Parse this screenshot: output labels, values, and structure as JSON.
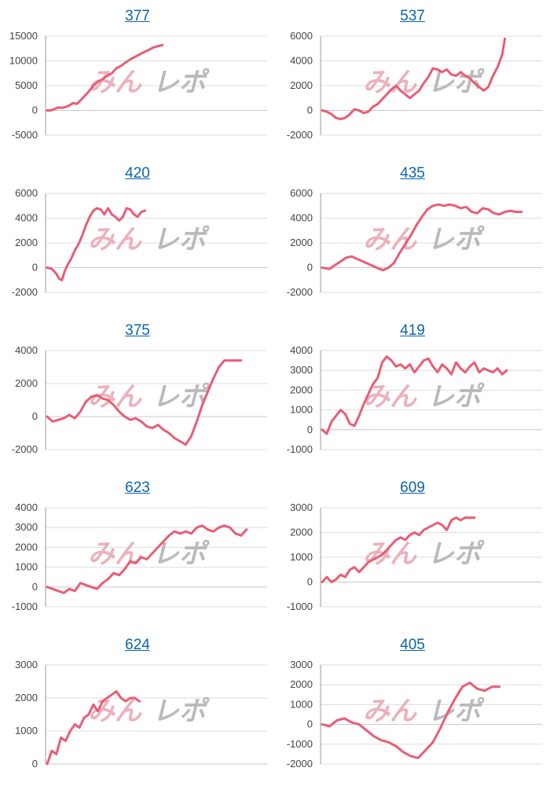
{
  "colors": {
    "line": "#e85d75",
    "grid": "#dddddd",
    "axis": "#999999",
    "title": "#0b64ad",
    "watermark_a": "#e9a9b3",
    "watermark_b": "#b3b3b3"
  },
  "watermark": {
    "part_a": "みん",
    "part_b": "レポ"
  },
  "chart_data": [
    {
      "type": "line",
      "title": "377",
      "ylim": [
        -5000,
        15000
      ],
      "yticks": [
        "15000",
        "10000",
        "5000",
        "0",
        "-5000"
      ],
      "grid": true,
      "x": [
        0,
        4,
        8,
        12,
        16,
        20,
        24,
        28,
        32,
        36,
        40,
        45,
        50,
        55,
        60,
        65,
        70,
        75,
        80,
        85,
        90,
        95,
        100,
        105,
        110,
        115,
        120,
        125
      ],
      "y": [
        0,
        0,
        300,
        600,
        500,
        700,
        1000,
        1500,
        1300,
        2000,
        2800,
        3800,
        5000,
        5800,
        6300,
        7000,
        7500,
        8500,
        9000,
        9700,
        10300,
        10800,
        11300,
        11800,
        12200,
        12700,
        13000,
        13200
      ]
    },
    {
      "type": "line",
      "title": "537",
      "ylim": [
        -2000,
        6000
      ],
      "yticks": [
        "6000",
        "4000",
        "2000",
        "0",
        "-2000"
      ],
      "grid": true,
      "x": [
        0,
        5,
        10,
        15,
        20,
        25,
        30,
        35,
        40,
        45,
        50,
        55,
        60,
        65,
        70,
        75,
        80,
        85,
        90,
        95,
        100,
        105,
        110,
        115,
        120,
        125,
        130,
        135,
        140,
        145,
        150,
        155,
        160,
        165,
        170,
        175,
        180,
        185,
        190,
        195,
        198
      ],
      "y": [
        0,
        -100,
        -300,
        -600,
        -700,
        -600,
        -300,
        100,
        0,
        -200,
        -100,
        300,
        500,
        900,
        1300,
        1700,
        2000,
        1600,
        1300,
        1000,
        1300,
        1600,
        2200,
        2700,
        3400,
        3300,
        3100,
        3300,
        2900,
        2800,
        3100,
        2800,
        2600,
        2200,
        1900,
        1600,
        1900,
        2800,
        3500,
        4500,
        5800
      ]
    },
    {
      "type": "line",
      "title": "420",
      "ylim": [
        -2000,
        6000
      ],
      "yticks": [
        "6000",
        "4000",
        "2000",
        "0",
        "-2000"
      ],
      "grid": true,
      "x": [
        0,
        5,
        10,
        13,
        16,
        19,
        22,
        26,
        30,
        34,
        38,
        42,
        46,
        50,
        54,
        58,
        62,
        66,
        70,
        74,
        78,
        82,
        86,
        90,
        94,
        98,
        102,
        106
      ],
      "y": [
        0,
        -100,
        -500,
        -900,
        -1000,
        -300,
        200,
        700,
        1400,
        1900,
        2600,
        3400,
        4100,
        4600,
        4800,
        4700,
        4300,
        4800,
        4300,
        4100,
        3800,
        4100,
        4800,
        4700,
        4300,
        4100,
        4500,
        4600
      ]
    },
    {
      "type": "line",
      "title": "435",
      "ylim": [
        -2000,
        6000
      ],
      "yticks": [
        "6000",
        "4000",
        "2000",
        "0",
        "-2000"
      ],
      "grid": true,
      "x": [
        0,
        8,
        14,
        20,
        26,
        32,
        38,
        44,
        50,
        56,
        62,
        66,
        72,
        78,
        84,
        90,
        96,
        102,
        108,
        114,
        120,
        126,
        132,
        138,
        144,
        150,
        156,
        162,
        168,
        174,
        180,
        186,
        192,
        198,
        204,
        210,
        216
      ],
      "y": [
        0,
        -100,
        200,
        500,
        800,
        900,
        700,
        500,
        300,
        100,
        -100,
        -200,
        0,
        400,
        1200,
        1900,
        2600,
        3400,
        4100,
        4700,
        5000,
        5100,
        5000,
        5100,
        5000,
        4800,
        4900,
        4500,
        4400,
        4800,
        4700,
        4400,
        4300,
        4500,
        4600,
        4500,
        4500
      ]
    },
    {
      "type": "line",
      "title": "375",
      "ylim": [
        -2000,
        4000
      ],
      "yticks": [
        "4000",
        "2000",
        "0",
        "-2000"
      ],
      "grid": true,
      "x": [
        0,
        6,
        12,
        18,
        24,
        30,
        36,
        42,
        48,
        54,
        60,
        66,
        72,
        78,
        84,
        90,
        96,
        102,
        108,
        114,
        120,
        126,
        132,
        138,
        144,
        150,
        156,
        162,
        168,
        174,
        180,
        186,
        192,
        198,
        204,
        210
      ],
      "y": [
        0,
        -300,
        -200,
        -100,
        100,
        -100,
        300,
        900,
        1200,
        1300,
        1100,
        1000,
        700,
        300,
        0,
        -200,
        -100,
        -300,
        -600,
        -700,
        -500,
        -800,
        -1000,
        -1300,
        -1500,
        -1700,
        -1200,
        -300,
        700,
        1500,
        2300,
        3000,
        3400,
        3400,
        3400,
        3400
      ]
    },
    {
      "type": "line",
      "title": "419",
      "ylim": [
        -1000,
        4000
      ],
      "yticks": [
        "4000",
        "3000",
        "2000",
        "1000",
        "0",
        "-1000"
      ],
      "grid": true,
      "x": [
        0,
        5,
        10,
        15,
        20,
        25,
        30,
        35,
        40,
        45,
        50,
        55,
        60,
        65,
        70,
        75,
        80,
        85,
        90,
        95,
        100,
        105,
        110,
        115,
        120,
        125,
        130,
        135,
        140,
        145,
        150,
        155,
        160,
        165,
        170,
        175,
        180,
        185,
        190,
        195,
        200
      ],
      "y": [
        0,
        -200,
        400,
        700,
        1000,
        800,
        300,
        200,
        700,
        1300,
        1800,
        2300,
        2600,
        3400,
        3700,
        3500,
        3200,
        3300,
        3100,
        3300,
        2900,
        3200,
        3500,
        3600,
        3200,
        2900,
        3300,
        3100,
        2800,
        3400,
        3100,
        2900,
        3200,
        3400,
        2900,
        3100,
        3000,
        2900,
        3100,
        2800,
        3000
      ]
    },
    {
      "type": "line",
      "title": "623",
      "ylim": [
        -1000,
        4000
      ],
      "yticks": [
        "4000",
        "3000",
        "2000",
        "1000",
        "0",
        "-1000"
      ],
      "grid": true,
      "x": [
        0,
        6,
        12,
        18,
        24,
        30,
        36,
        42,
        48,
        54,
        60,
        66,
        72,
        78,
        84,
        90,
        96,
        102,
        108,
        114,
        120,
        126,
        132,
        138,
        144,
        150,
        156,
        162,
        168,
        174,
        180,
        186,
        192,
        198,
        204,
        210,
        216
      ],
      "y": [
        0,
        -100,
        -200,
        -300,
        -100,
        -200,
        200,
        100,
        0,
        -100,
        200,
        400,
        700,
        600,
        900,
        1300,
        1200,
        1500,
        1400,
        1700,
        2000,
        2300,
        2600,
        2800,
        2700,
        2800,
        2700,
        3000,
        3100,
        2900,
        2800,
        3000,
        3100,
        3000,
        2700,
        2600,
        2900
      ]
    },
    {
      "type": "line",
      "title": "609",
      "ylim": [
        -1000,
        3000
      ],
      "yticks": [
        "3000",
        "2000",
        "1000",
        "0",
        "-1000"
      ],
      "grid": true,
      "x": [
        0,
        5,
        10,
        15,
        20,
        25,
        30,
        35,
        40,
        45,
        50,
        55,
        60,
        65,
        70,
        75,
        80,
        85,
        90,
        95,
        100,
        105,
        110,
        115,
        120,
        125,
        130,
        135,
        140,
        145,
        150,
        155,
        160,
        165
      ],
      "y": [
        0,
        200,
        0,
        100,
        300,
        200,
        500,
        600,
        400,
        600,
        800,
        900,
        1000,
        1100,
        1300,
        1500,
        1700,
        1800,
        1700,
        1900,
        2000,
        1900,
        2100,
        2200,
        2300,
        2400,
        2300,
        2100,
        2500,
        2600,
        2500,
        2600,
        2600,
        2600
      ]
    },
    {
      "type": "line",
      "title": "624",
      "ylim": [
        0,
        3000
      ],
      "yticks": [
        "3000",
        "2000",
        "1000",
        "0"
      ],
      "grid": true,
      "x": [
        0,
        5,
        10,
        15,
        20,
        25,
        30,
        35,
        40,
        45,
        50,
        55,
        60,
        65,
        70,
        75,
        80,
        85,
        90,
        95,
        100
      ],
      "y": [
        0,
        400,
        300,
        800,
        700,
        1000,
        1200,
        1100,
        1400,
        1500,
        1800,
        1600,
        1900,
        2000,
        2100,
        2200,
        2000,
        1900,
        2000,
        2000,
        1900
      ]
    },
    {
      "type": "line",
      "title": "405",
      "ylim": [
        -2000,
        3000
      ],
      "yticks": [
        "3000",
        "2000",
        "1000",
        "0",
        "-1000",
        "-2000"
      ],
      "grid": true,
      "x": [
        0,
        8,
        16,
        24,
        32,
        40,
        48,
        56,
        64,
        72,
        80,
        88,
        96,
        104,
        112,
        120,
        128,
        136,
        144,
        152,
        160,
        168,
        176,
        184,
        192
      ],
      "y": [
        0,
        -100,
        200,
        300,
        100,
        0,
        -300,
        -600,
        -800,
        -900,
        -1100,
        -1400,
        -1600,
        -1700,
        -1300,
        -900,
        -200,
        600,
        1300,
        1900,
        2100,
        1800,
        1700,
        1900,
        1900
      ]
    }
  ]
}
